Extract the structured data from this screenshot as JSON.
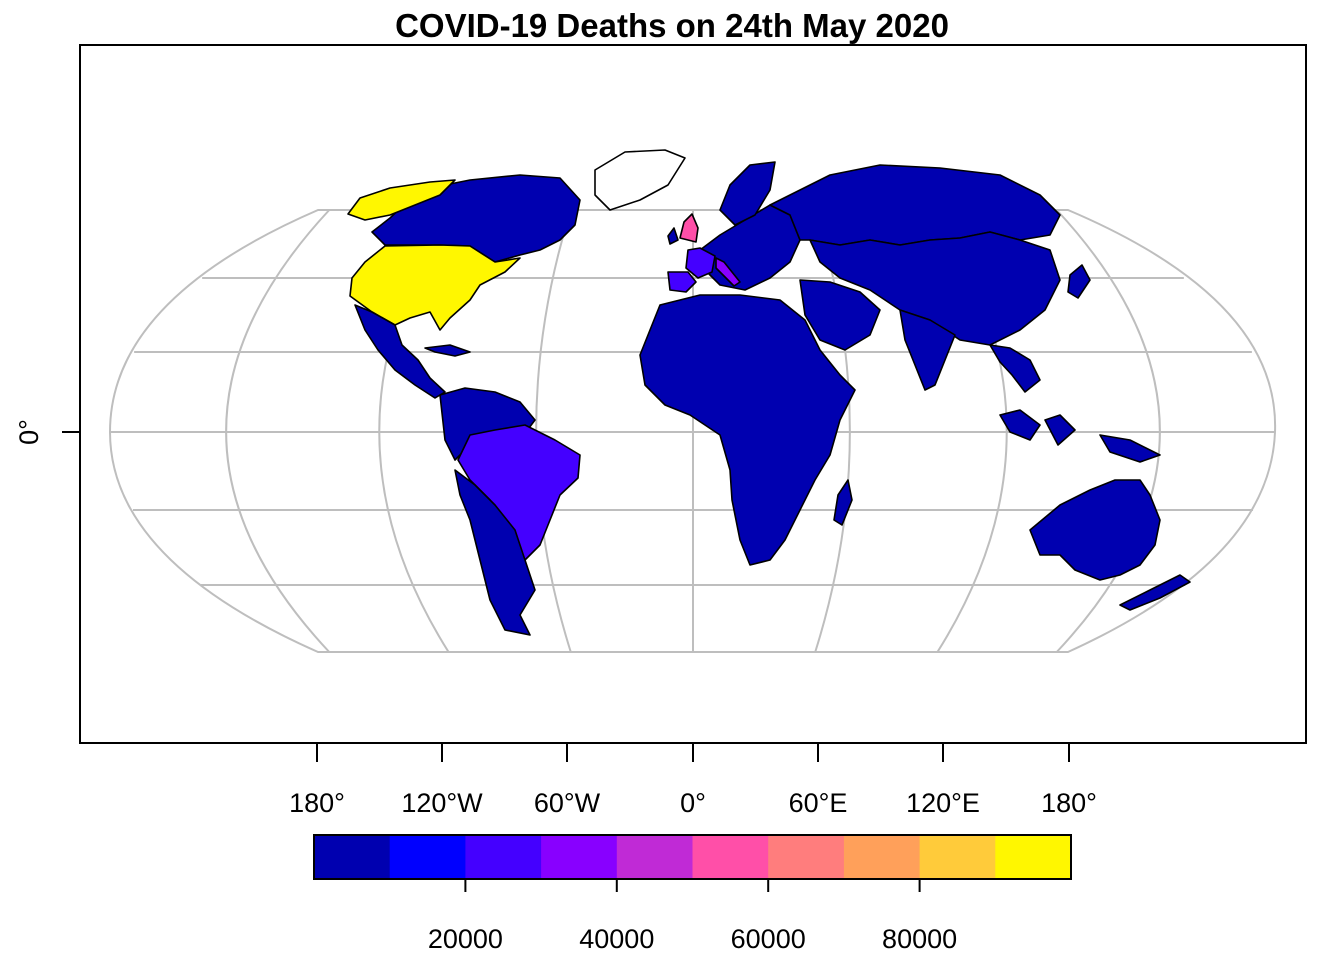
{
  "title": "COVID-19 Deaths on 24th May 2020",
  "y_axis_label": "0°",
  "longitude_labels": [
    "180°",
    "120°W",
    "60°W",
    "0°",
    "60°E",
    "120°E",
    "180°"
  ],
  "legend": {
    "tick_labels": [
      "20000",
      "40000",
      "60000",
      "80000"
    ],
    "tick_values": [
      20000,
      40000,
      60000,
      80000
    ],
    "range": [
      0,
      100000
    ],
    "colors": [
      "#0000b0",
      "#0000ff",
      "#4400ff",
      "#8800ff",
      "#c02ad6",
      "#ff4fa8",
      "#ff7d7d",
      "#ffa05a",
      "#ffcb3a",
      "#fff700"
    ]
  },
  "chart_data": {
    "type": "choropleth",
    "title": "COVID-19 Deaths on 24th May 2020",
    "projection": "Winkel tripel / Robinson-style",
    "color_scale_range": [
      0,
      100000
    ],
    "regions_highlighted": [
      {
        "region": "United States",
        "color": "#fff700",
        "bin": "90000-100000"
      },
      {
        "region": "United Kingdom",
        "color": "#ff4fa8",
        "bin": "50000-60000"
      },
      {
        "region": "Italy",
        "color": "#8800ff",
        "bin": "30000-40000"
      },
      {
        "region": "Spain",
        "color": "#4400ff",
        "bin": "20000-30000"
      },
      {
        "region": "France",
        "color": "#4400ff",
        "bin": "20000-30000"
      },
      {
        "region": "Brazil",
        "color": "#4400ff",
        "bin": "20000-30000"
      }
    ],
    "default_color": "#0000b0",
    "no_data_color": "#ffffff"
  }
}
